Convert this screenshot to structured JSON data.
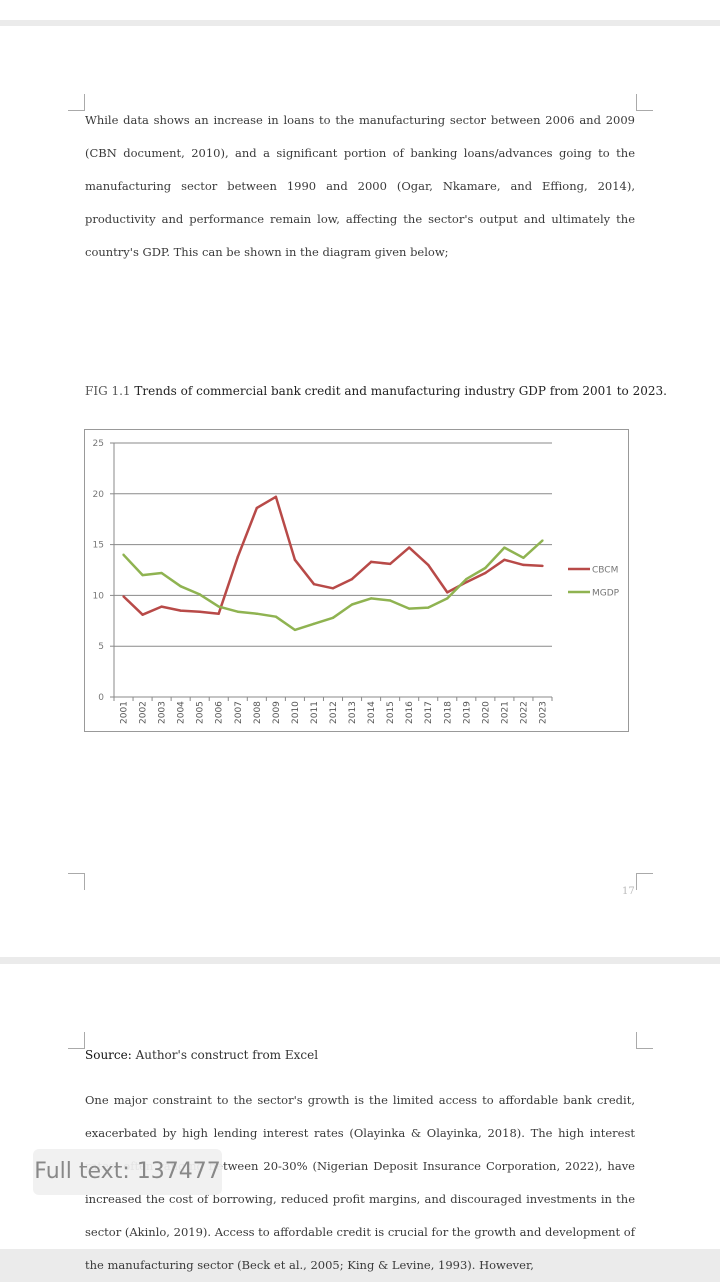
{
  "page1": {
    "paragraph": "While data shows an increase in loans to the manufacturing sector between 2006 and 2009 (CBN document, 2010), and a significant portion of banking loans/advances going to the manufacturing sector between 1990 and 2000 (Ogar, Nkamare, and Effiong, 2014), productivity and performance remain low, affecting the sector's output and ultimately the country's GDP. This can be shown in the diagram given below;",
    "figure_number": "FIG 1.1",
    "figure_title": "Trends of commercial bank credit and manufacturing industry GDP from 2001 to 2023.",
    "page_number": "17"
  },
  "page2": {
    "source_label": "Source:",
    "source_text": "Author's construct from Excel",
    "paragraph": "One major constraint to the sector's growth is the limited access to affordable bank credit, exacerbated by high lending interest rates (Olayinka & Olayinka, 2018). The high interest rates, often ranging between 20-30% (Nigerian Deposit Insurance Corporation, 2022), have increased the cost of borrowing, reduced profit margins, and discouraged investments in the sector (Akinlo, 2019). Access to affordable credit is crucial for the growth and development of the manufacturing sector (Beck et al., 2005; King & Levine, 1993). However,"
  },
  "overlay": {
    "fulltext_label": "Full text: 137477"
  },
  "chart_data": {
    "type": "line",
    "title": "",
    "xlabel": "",
    "ylabel": "",
    "ylim": [
      0,
      25
    ],
    "yticks": [
      0,
      5,
      10,
      15,
      20,
      25
    ],
    "grid": true,
    "legend_position": "right",
    "categories": [
      "2001",
      "2002",
      "2003",
      "2004",
      "2005",
      "2006",
      "2007",
      "2008",
      "2009",
      "2010",
      "2011",
      "2012",
      "2013",
      "2014",
      "2015",
      "2016",
      "2017",
      "2018",
      "2019",
      "2020",
      "2021",
      "2022",
      "2023"
    ],
    "series": [
      {
        "name": "CBCM",
        "color": "#b84a48",
        "values": [
          9.9,
          8.1,
          8.9,
          8.5,
          8.4,
          8.2,
          13.8,
          18.6,
          19.7,
          13.5,
          11.1,
          10.7,
          11.6,
          13.3,
          13.1,
          14.7,
          13.0,
          10.3,
          11.3,
          12.2,
          13.5,
          13.0,
          12.9
        ]
      },
      {
        "name": "MGDP",
        "color": "#8fb351",
        "values": [
          14.0,
          12.0,
          12.2,
          10.9,
          10.1,
          8.9,
          8.4,
          8.2,
          7.9,
          6.6,
          7.2,
          7.8,
          9.1,
          9.7,
          9.5,
          8.7,
          8.8,
          9.7,
          11.6,
          12.7,
          14.7,
          13.7,
          15.4
        ]
      }
    ]
  }
}
